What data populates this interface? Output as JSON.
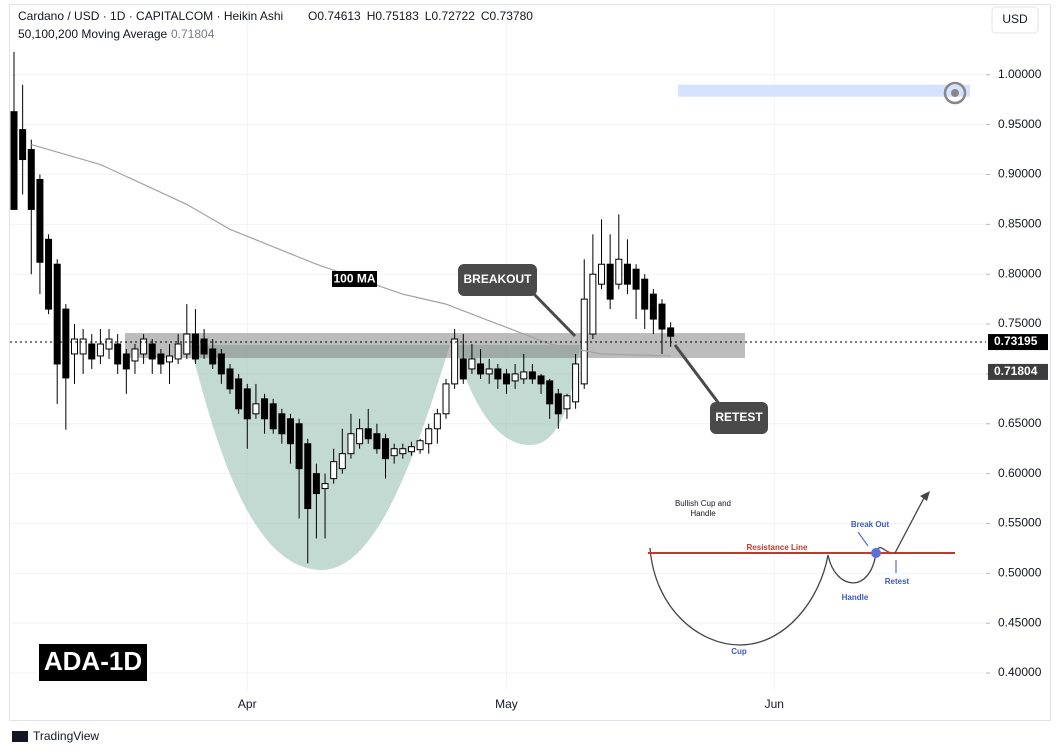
{
  "chart_data": {
    "type": "candlestick",
    "title": "Cardano / USD · 1D · CAPITALCOM · Heikin Ashi",
    "header_ohlc": [
      {
        "key": "O",
        "label": "0.74613"
      },
      {
        "key": "H",
        "label": "0.75183"
      },
      {
        "key": "L",
        "label": "0.72722"
      },
      {
        "key": "C",
        "label": "0.73780"
      }
    ],
    "currency": "USD",
    "categories": [
      null,
      null,
      null,
      null,
      null,
      null,
      null,
      null,
      null,
      null,
      null,
      null,
      null,
      null,
      null,
      null,
      null,
      null,
      null,
      null,
      null,
      null,
      null,
      null,
      null,
      null,
      null,
      "Apr",
      null,
      null,
      null,
      null,
      null,
      null,
      null,
      null,
      null,
      null,
      null,
      null,
      null,
      null,
      null,
      null,
      null,
      null,
      null,
      null,
      null,
      null,
      null,
      null,
      null,
      null,
      null,
      null,
      null,
      "May",
      null,
      null,
      null,
      null,
      null,
      null,
      null,
      null,
      null,
      null,
      null,
      null,
      null,
      null,
      null,
      null,
      null,
      null,
      null,
      null,
      null,
      null,
      null,
      null,
      null,
      null,
      null,
      null,
      null,
      null,
      "Jun",
      null,
      null,
      null,
      null,
      null,
      null,
      null,
      null,
      null,
      null,
      null,
      null,
      null,
      null,
      null,
      null,
      null,
      null,
      null,
      null,
      null,
      null,
      null,
      null
    ],
    "series": [
      {
        "type": "candlestick",
        "up_color": "#ffffff",
        "down_color": "#000000",
        "open": [
          0.963,
          0.945,
          0.925,
          0.895,
          0.835,
          0.81,
          0.765,
          0.72,
          0.72,
          0.73,
          0.718,
          0.725,
          0.73,
          0.72,
          0.713,
          0.72,
          0.73,
          0.72,
          0.712,
          0.715,
          0.72,
          0.74,
          0.735,
          0.725,
          0.72,
          0.705,
          0.695,
          0.685,
          0.66,
          0.675,
          0.67,
          0.66,
          0.655,
          0.65,
          0.63,
          0.6,
          0.585,
          0.595,
          0.605,
          0.62,
          0.63,
          0.645,
          0.64,
          0.635,
          0.618,
          0.62,
          0.622,
          0.624,
          0.63,
          0.645,
          0.66,
          0.69,
          0.715,
          0.705,
          0.71,
          0.7,
          0.705,
          0.7,
          0.693,
          0.695,
          0.702,
          0.698,
          0.693,
          0.68,
          0.665,
          0.672,
          0.69,
          0.74,
          0.79,
          0.81,
          0.79,
          0.81,
          0.805,
          0.795,
          0.78,
          0.77,
          0.74613,
          null,
          null,
          null,
          null,
          null,
          null,
          null,
          null,
          null,
          null,
          null,
          null,
          null,
          null,
          null,
          null,
          null,
          null,
          null,
          null,
          null,
          null,
          null,
          null,
          null,
          null,
          null,
          null,
          null,
          null,
          null,
          null,
          null,
          null,
          null,
          null
        ],
        "high": [
          1.023,
          0.99,
          0.935,
          0.9,
          0.84,
          0.815,
          0.77,
          0.75,
          0.745,
          0.74,
          0.745,
          0.745,
          0.74,
          0.725,
          0.73,
          0.74,
          0.735,
          0.725,
          0.73,
          0.74,
          0.77,
          0.765,
          0.745,
          0.735,
          0.725,
          0.71,
          0.7,
          0.69,
          0.69,
          0.68,
          0.675,
          0.665,
          0.66,
          0.655,
          0.635,
          0.61,
          0.6,
          0.625,
          0.645,
          0.66,
          0.655,
          0.665,
          0.65,
          0.64,
          0.63,
          0.63,
          0.632,
          0.635,
          0.65,
          0.665,
          0.695,
          0.745,
          0.74,
          0.73,
          0.725,
          0.715,
          0.71,
          0.705,
          0.71,
          0.72,
          0.71,
          0.7,
          0.695,
          0.685,
          0.68,
          0.72,
          0.815,
          0.84,
          0.855,
          0.84,
          0.86,
          0.835,
          0.81,
          0.8,
          0.785,
          0.775,
          0.75183,
          null,
          null,
          null,
          null,
          null,
          null,
          null,
          null,
          null,
          null,
          null,
          null,
          null,
          null,
          null,
          null,
          null,
          null,
          null,
          null,
          null,
          null,
          null,
          null,
          null,
          null,
          null,
          null,
          null,
          null,
          null,
          null,
          null,
          null,
          null,
          null
        ],
        "low": [
          0.865,
          0.88,
          0.8,
          0.78,
          0.76,
          0.67,
          0.644,
          0.69,
          0.7,
          0.705,
          0.71,
          0.715,
          0.7,
          0.68,
          0.7,
          0.71,
          0.7,
          0.7,
          0.69,
          0.71,
          0.715,
          0.71,
          0.715,
          0.705,
          0.69,
          0.68,
          0.66,
          0.625,
          0.655,
          0.64,
          0.64,
          0.63,
          0.61,
          0.555,
          0.51,
          0.535,
          0.535,
          0.59,
          0.6,
          0.615,
          0.625,
          0.63,
          0.62,
          0.595,
          0.61,
          0.615,
          0.618,
          0.62,
          0.62,
          0.63,
          0.655,
          0.685,
          0.69,
          0.7,
          0.695,
          0.69,
          0.685,
          0.68,
          0.685,
          0.69,
          0.69,
          0.68,
          0.655,
          0.645,
          0.655,
          0.665,
          0.685,
          0.735,
          0.785,
          0.765,
          0.785,
          0.78,
          0.755,
          0.745,
          0.74,
          0.72,
          0.72722,
          null,
          null,
          null,
          null,
          null,
          null,
          null,
          null,
          null,
          null,
          null,
          null,
          null,
          null,
          null,
          null,
          null,
          null,
          null,
          null,
          null,
          null,
          null,
          null,
          null,
          null,
          null,
          null,
          null,
          null,
          null,
          null,
          null,
          null,
          null,
          null
        ],
        "close": [
          0.865,
          0.915,
          0.865,
          0.812,
          0.765,
          0.71,
          0.696,
          0.735,
          0.735,
          0.715,
          0.73,
          0.735,
          0.71,
          0.705,
          0.725,
          0.735,
          0.715,
          0.71,
          0.718,
          0.73,
          0.74,
          0.715,
          0.72,
          0.71,
          0.7,
          0.685,
          0.665,
          0.655,
          0.67,
          0.655,
          0.645,
          0.64,
          0.63,
          0.605,
          0.565,
          0.58,
          0.59,
          0.612,
          0.62,
          0.64,
          0.645,
          0.635,
          0.625,
          0.615,
          0.625,
          0.625,
          0.627,
          0.633,
          0.645,
          0.66,
          0.69,
          0.735,
          0.695,
          0.715,
          0.7,
          0.705,
          0.695,
          0.69,
          0.7,
          0.702,
          0.695,
          0.69,
          0.67,
          0.66,
          0.678,
          0.71,
          0.775,
          0.8,
          0.81,
          0.775,
          0.815,
          0.79,
          0.785,
          0.765,
          0.755,
          0.745,
          0.7378,
          null,
          null,
          null,
          null,
          null,
          null,
          null,
          null,
          null,
          null,
          null,
          null,
          null,
          null,
          null,
          null,
          null,
          null,
          null,
          null,
          null,
          null,
          null,
          null,
          null,
          null,
          null,
          null,
          null,
          null,
          null,
          null,
          null,
          null,
          null,
          null
        ]
      },
      {
        "type": "line",
        "name": "50,100,200 Moving Average",
        "color": "#a3a3a3",
        "values": [
          null,
          null,
          0.93,
          0.9275,
          0.925,
          0.9225,
          0.92,
          0.9175,
          0.915,
          0.9125,
          0.91,
          0.906,
          0.902,
          0.898,
          0.894,
          0.89,
          0.886,
          0.882,
          0.878,
          0.874,
          0.87,
          0.865,
          0.86,
          0.855,
          0.85,
          0.845,
          0.8415,
          0.838,
          0.8345,
          0.831,
          0.8275,
          0.824,
          0.8205,
          0.817,
          0.8135,
          0.81,
          0.807,
          0.804,
          0.801,
          0.798,
          0.795,
          0.792,
          0.789,
          0.786,
          0.783,
          0.78,
          0.778,
          0.776,
          0.774,
          0.772,
          0.77,
          0.7667,
          0.7633,
          0.76,
          0.7567,
          0.7533,
          0.75,
          0.7467,
          0.7433,
          0.74,
          0.7367,
          0.7333,
          0.73,
          0.7283,
          0.7267,
          0.725,
          0.7233,
          0.7217,
          0.72,
          0.7198,
          0.7195,
          0.7193,
          0.719,
          0.7188,
          0.7185,
          0.7183,
          0.71804,
          null,
          null,
          null,
          null,
          null,
          null,
          null,
          null,
          null,
          null,
          null,
          null,
          null,
          null,
          null,
          null,
          null,
          null,
          null,
          null,
          null,
          null,
          null,
          null,
          null,
          null,
          null,
          null,
          null,
          null,
          null,
          null,
          null,
          null,
          null,
          null
        ]
      }
    ],
    "current_price": {
      "value": 0.73195,
      "label": "0.73195"
    },
    "ylim": [
      0.383,
      1.075
    ],
    "yticks": [
      {
        "value": 0.4,
        "label": "0.40000"
      },
      {
        "value": 0.45,
        "label": "0.45000"
      },
      {
        "value": 0.5,
        "label": "0.50000"
      },
      {
        "value": 0.55,
        "label": "0.55000"
      },
      {
        "value": 0.6,
        "label": "0.60000"
      },
      {
        "value": 0.65,
        "label": "0.65000"
      },
      {
        "value": 0.7,
        "label": "0.70000"
      },
      {
        "value": 0.75,
        "label": "0.75000"
      },
      {
        "value": 0.8,
        "label": "0.80000"
      },
      {
        "value": 0.85,
        "label": "0.85000"
      },
      {
        "value": 0.9,
        "label": "0.90000"
      },
      {
        "value": 0.95,
        "label": "0.95000"
      },
      {
        "value": 1,
        "label": "1.00000"
      }
    ],
    "grid": true,
    "resistance_zone": [
      0.716,
      0.741
    ],
    "target_zone": [
      0.978,
      0.99
    ],
    "annotations": {
      "ma_label": "100 MA",
      "breakout": "BREAKOUT",
      "retest": "RETEST",
      "symbol": "ADA-1D"
    },
    "inset": {
      "title": [
        "Bullish Cup and",
        "Handle"
      ],
      "resistance": "Resistance Line",
      "break_out": "Break Out",
      "handle": "Handle",
      "retest": "Retest",
      "cup": "Cup"
    },
    "brand": "TradingView"
  }
}
